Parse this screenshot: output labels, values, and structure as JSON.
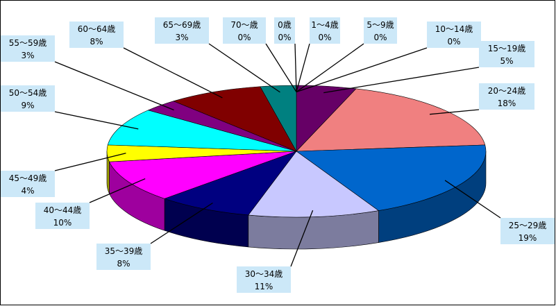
{
  "chart_data": {
    "type": "pie",
    "title": "",
    "categories": [
      "0歳",
      "1～4歳",
      "5～9歳",
      "10～14歳",
      "15～19歳",
      "20～24歳",
      "25～29歳",
      "30～34歳",
      "35～39歳",
      "40～44歳",
      "45～49歳",
      "50～54歳",
      "55～59歳",
      "60～64歳",
      "65～69歳",
      "70～歳"
    ],
    "values": [
      0,
      0,
      0,
      0,
      5,
      18,
      19,
      11,
      8,
      10,
      4,
      9,
      3,
      8,
      3,
      0
    ],
    "percent_labels": [
      "0%",
      "0%",
      "0%",
      "0%",
      "5%",
      "18%",
      "19%",
      "11%",
      "8%",
      "10%",
      "4%",
      "9%",
      "3%",
      "8%",
      "3%",
      "0%"
    ],
    "colors": [
      "#5a005a",
      "#5a005a",
      "#5a005a",
      "#5a005a",
      "#660066",
      "#f08080",
      "#0066cc",
      "#c8c8ff",
      "#000080",
      "#ff00ff",
      "#ffff00",
      "#00ffff",
      "#800080",
      "#800000",
      "#008080",
      "#008080"
    ],
    "legend": "none",
    "style": "3d-exploded-labels"
  }
}
